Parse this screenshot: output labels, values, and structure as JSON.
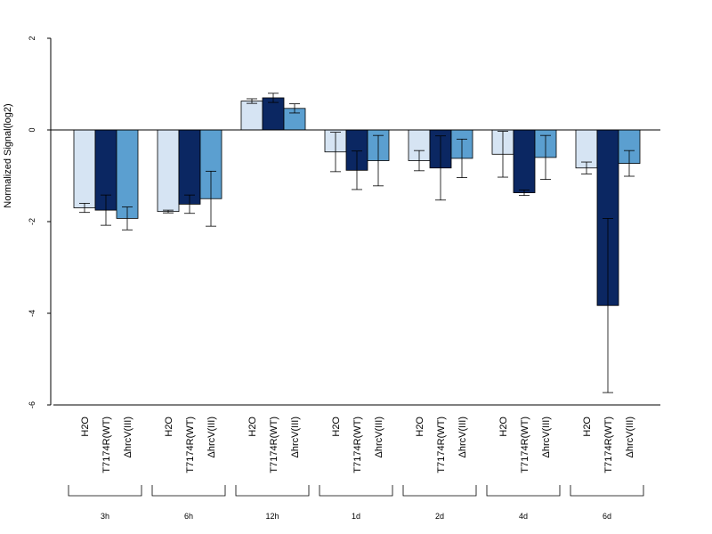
{
  "chart_data": {
    "type": "bar",
    "ylabel": "Normalized Signal(log2)",
    "ylim": [
      -6,
      2
    ],
    "yticks": [
      "2",
      "0",
      "-2",
      "-4",
      "-6"
    ],
    "groups": [
      "3h",
      "6h",
      "12h",
      "1d",
      "2d",
      "4d",
      "6d"
    ],
    "series": [
      {
        "name": "H2O",
        "color": "#d6e4f3",
        "values": [
          -1.7,
          -1.78,
          0.63,
          -0.48,
          -0.67,
          -0.53,
          -0.83
        ],
        "err": [
          0.1,
          0.03,
          0.05,
          0.43,
          0.22,
          0.5,
          0.13
        ]
      },
      {
        "name": "T7174R(WT)",
        "color": "#0b2762",
        "values": [
          -1.75,
          -1.62,
          0.7,
          -0.88,
          -0.83,
          -1.37,
          -3.83
        ],
        "err": [
          0.33,
          0.2,
          0.1,
          0.42,
          0.7,
          0.06,
          1.9
        ]
      },
      {
        "name": "ΔhrcV(III)",
        "color": "#5b9fd0",
        "values": [
          -1.93,
          -1.5,
          0.47,
          -0.67,
          -0.62,
          -0.6,
          -0.73
        ],
        "err": [
          0.25,
          0.6,
          0.1,
          0.55,
          0.42,
          0.48,
          0.28
        ]
      }
    ]
  }
}
